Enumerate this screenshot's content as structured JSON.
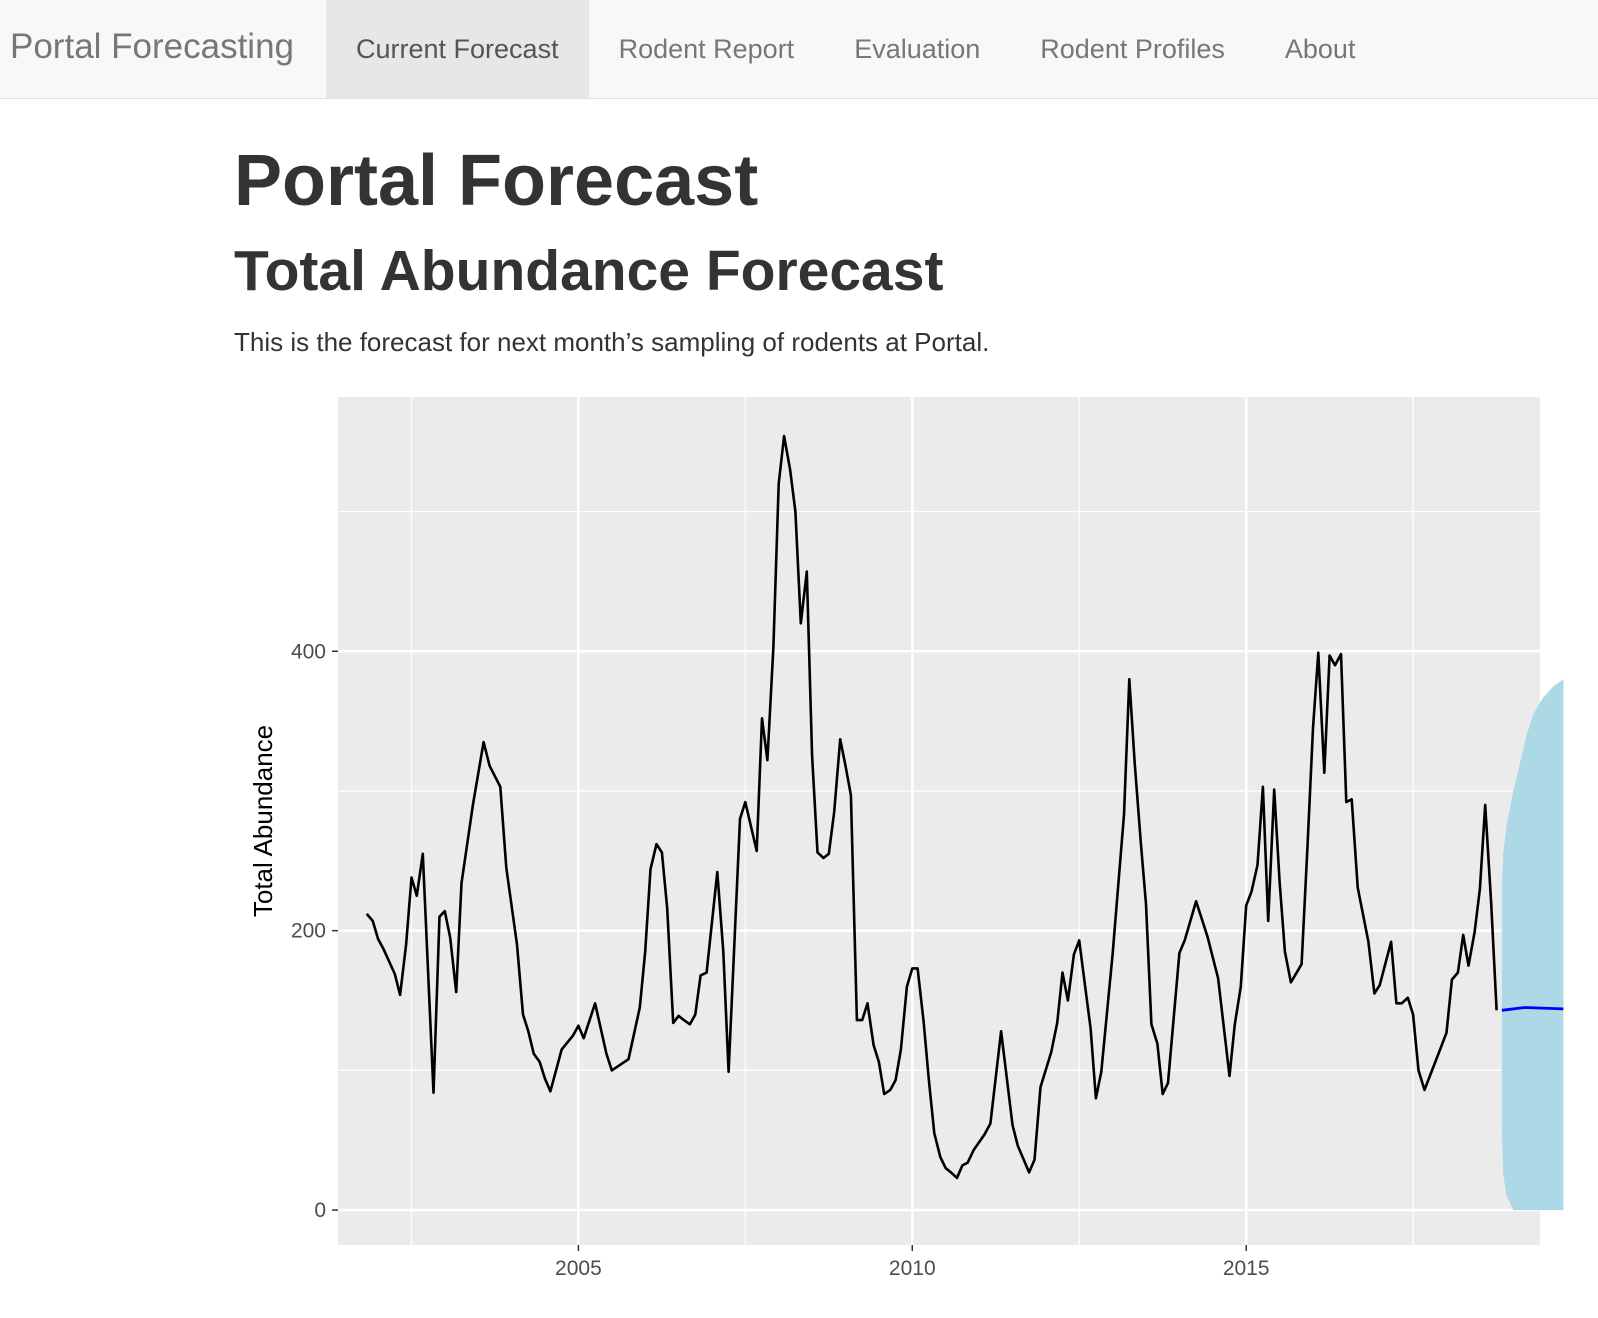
{
  "navbar": {
    "brand": "Portal Forecasting",
    "items": [
      {
        "label": "Current Forecast",
        "active": true
      },
      {
        "label": "Rodent Report",
        "active": false
      },
      {
        "label": "Evaluation",
        "active": false
      },
      {
        "label": "Rodent Profiles",
        "active": false
      },
      {
        "label": "About",
        "active": false
      }
    ]
  },
  "main": {
    "title": "Portal Forecast",
    "subtitle": "Total Abundance Forecast",
    "description": "This is the forecast for next month’s sampling of rodents at Portal."
  },
  "chart_data": {
    "type": "line",
    "title": "",
    "xlabel": "",
    "ylabel": "Total Abundance",
    "xlim": [
      2001.4,
      2019.4
    ],
    "ylim": [
      -25,
      582
    ],
    "x_ticks": [
      2005,
      2010,
      2015
    ],
    "y_ticks": [
      0,
      200,
      400
    ],
    "grid": true,
    "background": "#ebebeb",
    "colors": {
      "observed": "#000000",
      "forecast": "#0000ff",
      "interval": "#add8e6"
    },
    "series": [
      {
        "role": "observed",
        "points": [
          [
            2001.83,
            212
          ],
          [
            2001.92,
            207
          ],
          [
            2002.0,
            194
          ],
          [
            2002.08,
            187
          ],
          [
            2002.25,
            169
          ],
          [
            2002.33,
            154
          ],
          [
            2002.42,
            190
          ],
          [
            2002.5,
            238
          ],
          [
            2002.58,
            225
          ],
          [
            2002.67,
            255
          ],
          [
            2002.83,
            84
          ],
          [
            2002.92,
            210
          ],
          [
            2003.0,
            214
          ],
          [
            2003.08,
            195
          ],
          [
            2003.17,
            156
          ],
          [
            2003.25,
            234
          ],
          [
            2003.42,
            290
          ],
          [
            2003.58,
            335
          ],
          [
            2003.67,
            318
          ],
          [
            2003.83,
            303
          ],
          [
            2003.92,
            245
          ],
          [
            2004.08,
            190
          ],
          [
            2004.17,
            140
          ],
          [
            2004.25,
            128
          ],
          [
            2004.33,
            112
          ],
          [
            2004.42,
            106
          ],
          [
            2004.5,
            94
          ],
          [
            2004.58,
            85
          ],
          [
            2004.75,
            115
          ],
          [
            2004.92,
            125
          ],
          [
            2005.0,
            132
          ],
          [
            2005.08,
            123
          ],
          [
            2005.25,
            148
          ],
          [
            2005.42,
            112
          ],
          [
            2005.5,
            100
          ],
          [
            2005.75,
            108
          ],
          [
            2005.92,
            145
          ],
          [
            2006.0,
            185
          ],
          [
            2006.08,
            244
          ],
          [
            2006.17,
            262
          ],
          [
            2006.25,
            256
          ],
          [
            2006.33,
            216
          ],
          [
            2006.42,
            134
          ],
          [
            2006.5,
            139
          ],
          [
            2006.58,
            136
          ],
          [
            2006.67,
            133
          ],
          [
            2006.75,
            140
          ],
          [
            2006.83,
            168
          ],
          [
            2006.92,
            170
          ],
          [
            2007.08,
            242
          ],
          [
            2007.17,
            185
          ],
          [
            2007.25,
            99
          ],
          [
            2007.42,
            280
          ],
          [
            2007.5,
            292
          ],
          [
            2007.67,
            257
          ],
          [
            2007.75,
            352
          ],
          [
            2007.83,
            322
          ],
          [
            2007.92,
            403
          ],
          [
            2008.0,
            520
          ],
          [
            2008.08,
            554
          ],
          [
            2008.17,
            530
          ],
          [
            2008.25,
            500
          ],
          [
            2008.33,
            420
          ],
          [
            2008.42,
            457
          ],
          [
            2008.5,
            325
          ],
          [
            2008.58,
            256
          ],
          [
            2008.67,
            252
          ],
          [
            2008.75,
            255
          ],
          [
            2008.83,
            285
          ],
          [
            2008.92,
            337
          ],
          [
            2009.0,
            318
          ],
          [
            2009.08,
            297
          ],
          [
            2009.17,
            136
          ],
          [
            2009.25,
            136
          ],
          [
            2009.33,
            148
          ],
          [
            2009.42,
            118
          ],
          [
            2009.5,
            106
          ],
          [
            2009.58,
            83
          ],
          [
            2009.67,
            86
          ],
          [
            2009.75,
            93
          ],
          [
            2009.83,
            115
          ],
          [
            2009.92,
            160
          ],
          [
            2010.0,
            173
          ],
          [
            2010.08,
            173
          ],
          [
            2010.17,
            135
          ],
          [
            2010.25,
            92
          ],
          [
            2010.33,
            55
          ],
          [
            2010.42,
            38
          ],
          [
            2010.5,
            30
          ],
          [
            2010.58,
            27
          ],
          [
            2010.67,
            23
          ],
          [
            2010.75,
            32
          ],
          [
            2010.83,
            34
          ],
          [
            2010.92,
            43
          ],
          [
            2011.08,
            54
          ],
          [
            2011.17,
            62
          ],
          [
            2011.33,
            128
          ],
          [
            2011.5,
            61
          ],
          [
            2011.58,
            46
          ],
          [
            2011.75,
            27
          ],
          [
            2011.83,
            36
          ],
          [
            2011.92,
            88
          ],
          [
            2012.08,
            113
          ],
          [
            2012.17,
            134
          ],
          [
            2012.25,
            170
          ],
          [
            2012.33,
            150
          ],
          [
            2012.42,
            183
          ],
          [
            2012.5,
            193
          ],
          [
            2012.67,
            130
          ],
          [
            2012.75,
            80
          ],
          [
            2012.83,
            99
          ],
          [
            2013.0,
            183
          ],
          [
            2013.17,
            283
          ],
          [
            2013.25,
            380
          ],
          [
            2013.33,
            320
          ],
          [
            2013.42,
            264
          ],
          [
            2013.5,
            219
          ],
          [
            2013.58,
            133
          ],
          [
            2013.67,
            119
          ],
          [
            2013.75,
            83
          ],
          [
            2013.83,
            91
          ],
          [
            2014.0,
            184
          ],
          [
            2014.08,
            193
          ],
          [
            2014.25,
            221
          ],
          [
            2014.42,
            196
          ],
          [
            2014.58,
            166
          ],
          [
            2014.75,
            96
          ],
          [
            2014.83,
            133
          ],
          [
            2014.92,
            160
          ],
          [
            2015.0,
            218
          ],
          [
            2015.08,
            228
          ],
          [
            2015.17,
            247
          ],
          [
            2015.25,
            303
          ],
          [
            2015.33,
            207
          ],
          [
            2015.42,
            301
          ],
          [
            2015.5,
            235
          ],
          [
            2015.58,
            185
          ],
          [
            2015.67,
            163
          ],
          [
            2015.83,
            176
          ],
          [
            2015.92,
            262
          ],
          [
            2016.0,
            345
          ],
          [
            2016.08,
            399
          ],
          [
            2016.17,
            313
          ],
          [
            2016.25,
            397
          ],
          [
            2016.33,
            390
          ],
          [
            2016.42,
            398
          ],
          [
            2016.5,
            292
          ],
          [
            2016.58,
            294
          ],
          [
            2016.67,
            231
          ],
          [
            2016.83,
            192
          ],
          [
            2016.92,
            155
          ],
          [
            2017.0,
            161
          ],
          [
            2017.17,
            192
          ],
          [
            2017.25,
            148
          ],
          [
            2017.33,
            148
          ],
          [
            2017.42,
            152
          ],
          [
            2017.5,
            140
          ],
          [
            2017.58,
            100
          ],
          [
            2017.67,
            86
          ],
          [
            2017.92,
            117
          ],
          [
            2018.0,
            127
          ],
          [
            2018.08,
            165
          ],
          [
            2018.17,
            170
          ],
          [
            2018.25,
            197
          ],
          [
            2018.33,
            175
          ],
          [
            2018.42,
            199
          ],
          [
            2018.5,
            230
          ],
          [
            2018.58,
            290
          ],
          [
            2018.67,
            218
          ],
          [
            2018.75,
            143
          ]
        ]
      },
      {
        "role": "forecast",
        "points": [
          [
            2018.83,
            143
          ],
          [
            2019.17,
            145
          ],
          [
            2019.75,
            144
          ]
        ]
      }
    ],
    "interval": {
      "x": [
        2018.83,
        2018.85,
        2018.9,
        2019.0,
        2019.1,
        2019.2,
        2019.3,
        2019.45,
        2019.6,
        2019.75
      ],
      "upper": [
        235,
        255,
        275,
        300,
        320,
        340,
        355,
        367,
        375,
        380
      ],
      "lower": [
        55,
        25,
        10,
        0,
        0,
        0,
        0,
        0,
        0,
        0
      ]
    }
  }
}
